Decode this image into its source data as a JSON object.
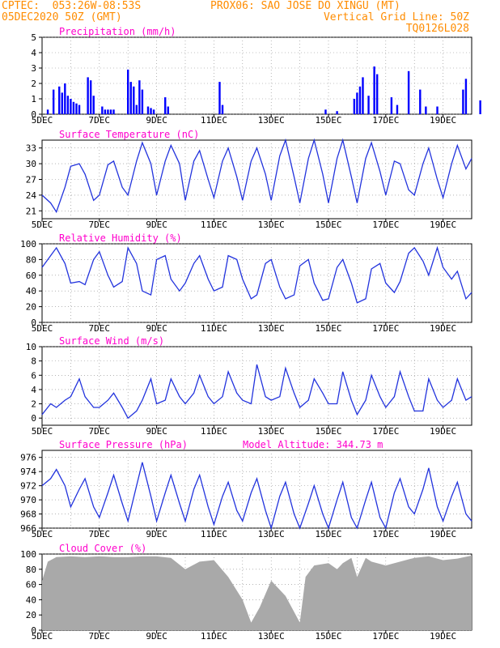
{
  "header": {
    "line1_left": "CPTEC:  053:26W-08:53S",
    "line1_right": "PROX06: SAO JOSE DO XINGU (MT)",
    "line2_left": "05DEC2020 50Z (GMT)",
    "line2_right": "Vertical Grid Line: 50Z",
    "line3_right": "TQ0126L028"
  },
  "x_tick_labels": [
    "5DEC",
    "7DEC",
    "9DEC",
    "11DEC",
    "13DEC",
    "15DEC",
    "17DEC",
    "19DEC"
  ],
  "colors": {
    "header": "#ff8c00",
    "title": "#ff00cc",
    "series": "#2233dd",
    "bar": "#0000ff",
    "cloud": "#a9a9a9",
    "grid": "#888888"
  },
  "chart_data": [
    {
      "type": "bar",
      "title": "Precipitation (mm/h)",
      "ylim": [
        0,
        5
      ],
      "yticks": [
        "0",
        "1",
        "2",
        "3",
        "4",
        "5"
      ],
      "x": [
        0.2,
        0.4,
        0.6,
        0.7,
        0.8,
        0.9,
        1.0,
        1.1,
        1.2,
        1.3,
        1.6,
        1.7,
        1.8,
        2.1,
        2.2,
        2.3,
        2.4,
        2.5,
        3.0,
        3.1,
        3.2,
        3.3,
        3.4,
        3.5,
        3.7,
        3.8,
        3.9,
        4.3,
        4.4,
        6.2,
        6.3,
        9.9,
        10.3,
        10.9,
        11.0,
        11.1,
        11.2,
        11.4,
        11.6,
        11.7,
        12.2,
        12.4,
        12.8,
        13.2,
        13.4,
        13.8,
        14.7,
        14.8,
        15.3
      ],
      "values": [
        0.3,
        1.6,
        1.8,
        1.4,
        2.0,
        1.2,
        1.0,
        0.8,
        0.7,
        0.6,
        2.4,
        2.2,
        1.2,
        0.5,
        0.3,
        0.3,
        0.3,
        0.3,
        2.9,
        2.1,
        1.8,
        0.6,
        2.2,
        1.6,
        0.5,
        0.4,
        0.3,
        1.1,
        0.5,
        2.1,
        0.6,
        0.3,
        0.2,
        1.0,
        1.4,
        1.8,
        2.4,
        1.2,
        3.1,
        2.6,
        1.1,
        0.6,
        2.8,
        1.6,
        0.5,
        0.5,
        1.6,
        2.3,
        0.9
      ]
    },
    {
      "type": "line",
      "title": "Surface Temperature (nC)",
      "ylim": [
        19.5,
        34.5
      ],
      "yticks": [
        "21",
        "24",
        "27",
        "30",
        "33"
      ],
      "x": [
        0,
        0.3,
        0.5,
        0.8,
        1.0,
        1.3,
        1.5,
        1.8,
        2.0,
        2.3,
        2.5,
        2.8,
        3.0,
        3.3,
        3.5,
        3.8,
        4.0,
        4.3,
        4.5,
        4.8,
        5.0,
        5.3,
        5.5,
        5.8,
        6.0,
        6.3,
        6.5,
        6.8,
        7.0,
        7.3,
        7.5,
        7.8,
        8.0,
        8.3,
        8.5,
        8.8,
        9.0,
        9.3,
        9.5,
        9.8,
        10.0,
        10.3,
        10.5,
        10.8,
        11.0,
        11.3,
        11.5,
        11.8,
        12.0,
        12.3,
        12.5,
        12.8,
        13.0,
        13.3,
        13.5,
        13.8,
        14.0,
        14.3,
        14.5,
        14.8,
        15.0
      ],
      "values": [
        24.0,
        22.5,
        20.8,
        25.5,
        29.5,
        30.0,
        28.0,
        23.0,
        24.0,
        29.8,
        30.5,
        25.5,
        24.0,
        30.5,
        34.0,
        30.0,
        24.0,
        30.5,
        33.5,
        30.0,
        23.0,
        30.5,
        32.5,
        27.0,
        23.5,
        30.5,
        33.0,
        27.5,
        23.0,
        30.5,
        33.0,
        28.0,
        23.0,
        31.5,
        34.5,
        27.5,
        22.5,
        31.0,
        34.5,
        28.0,
        22.5,
        31.0,
        34.5,
        27.5,
        22.5,
        31.0,
        34.0,
        28.5,
        24.0,
        30.5,
        30.0,
        25.0,
        24.0,
        30.0,
        33.0,
        27.0,
        23.5,
        30.0,
        33.5,
        29.0,
        31.0
      ]
    },
    {
      "type": "line",
      "title": "Relative Humidity (%)",
      "ylim": [
        0,
        100
      ],
      "yticks": [
        "0",
        "20",
        "40",
        "60",
        "80",
        "100"
      ],
      "x": [
        0,
        0.3,
        0.5,
        0.8,
        1.0,
        1.3,
        1.5,
        1.8,
        2.0,
        2.3,
        2.5,
        2.8,
        3.0,
        3.3,
        3.5,
        3.8,
        4.0,
        4.3,
        4.5,
        4.8,
        5.0,
        5.3,
        5.5,
        5.8,
        6.0,
        6.3,
        6.5,
        6.8,
        7.0,
        7.3,
        7.5,
        7.8,
        8.0,
        8.3,
        8.5,
        8.8,
        9.0,
        9.3,
        9.5,
        9.8,
        10.0,
        10.3,
        10.5,
        10.8,
        11.0,
        11.3,
        11.5,
        11.8,
        12.0,
        12.3,
        12.5,
        12.8,
        13.0,
        13.3,
        13.5,
        13.8,
        14.0,
        14.3,
        14.5,
        14.8,
        15.0
      ],
      "values": [
        70,
        85,
        95,
        75,
        50,
        52,
        48,
        80,
        90,
        60,
        45,
        52,
        95,
        75,
        40,
        35,
        80,
        85,
        55,
        40,
        50,
        75,
        85,
        55,
        40,
        45,
        85,
        80,
        55,
        30,
        35,
        75,
        80,
        45,
        30,
        35,
        72,
        80,
        50,
        28,
        30,
        70,
        80,
        50,
        25,
        30,
        68,
        75,
        50,
        38,
        52,
        88,
        95,
        78,
        60,
        95,
        70,
        55,
        65,
        30,
        38
      ]
    },
    {
      "type": "line",
      "title": "Surface Wind (m/s)",
      "ylim": [
        -1,
        10
      ],
      "yticks": [
        "0",
        "2",
        "4",
        "6",
        "8",
        "10"
      ],
      "x": [
        0,
        0.3,
        0.5,
        0.8,
        1.0,
        1.3,
        1.5,
        1.8,
        2.0,
        2.3,
        2.5,
        2.8,
        3.0,
        3.3,
        3.5,
        3.8,
        4.0,
        4.3,
        4.5,
        4.8,
        5.0,
        5.3,
        5.5,
        5.8,
        6.0,
        6.3,
        6.5,
        6.8,
        7.0,
        7.3,
        7.5,
        7.8,
        8.0,
        8.3,
        8.5,
        8.8,
        9.0,
        9.3,
        9.5,
        9.8,
        10.0,
        10.3,
        10.5,
        10.8,
        11.0,
        11.3,
        11.5,
        11.8,
        12.0,
        12.3,
        12.5,
        12.8,
        13.0,
        13.3,
        13.5,
        13.8,
        14.0,
        14.3,
        14.5,
        14.8,
        15.0
      ],
      "values": [
        0.5,
        2.0,
        1.5,
        2.5,
        3.0,
        5.5,
        3.0,
        1.5,
        1.5,
        2.5,
        3.5,
        1.5,
        0.0,
        1.0,
        2.5,
        5.5,
        2.0,
        2.5,
        5.5,
        3.0,
        2.0,
        3.5,
        6.0,
        3.0,
        2.0,
        3.0,
        6.5,
        3.5,
        2.5,
        2.0,
        7.5,
        3.0,
        2.5,
        3.0,
        7.0,
        3.5,
        1.5,
        2.5,
        5.5,
        3.5,
        2.0,
        2.0,
        6.5,
        2.5,
        0.5,
        2.5,
        6.0,
        3.0,
        1.5,
        3.0,
        6.5,
        3.0,
        1.0,
        1.0,
        5.5,
        2.5,
        1.5,
        2.5,
        5.5,
        2.5,
        3.0
      ]
    },
    {
      "type": "line",
      "title": "Surface Pressure (hPa)",
      "annotation": "Model Altitude: 344.73 m",
      "ylim": [
        966,
        977
      ],
      "yticks": [
        "966",
        "968",
        "970",
        "972",
        "974",
        "976"
      ],
      "x": [
        0,
        0.3,
        0.5,
        0.8,
        1.0,
        1.3,
        1.5,
        1.8,
        2.0,
        2.3,
        2.5,
        2.8,
        3.0,
        3.3,
        3.5,
        3.8,
        4.0,
        4.3,
        4.5,
        4.8,
        5.0,
        5.3,
        5.5,
        5.8,
        6.0,
        6.3,
        6.5,
        6.8,
        7.0,
        7.3,
        7.5,
        7.8,
        8.0,
        8.3,
        8.5,
        8.8,
        9.0,
        9.3,
        9.5,
        9.8,
        10.0,
        10.3,
        10.5,
        10.8,
        11.0,
        11.3,
        11.5,
        11.8,
        12.0,
        12.3,
        12.5,
        12.8,
        13.0,
        13.3,
        13.5,
        13.8,
        14.0,
        14.3,
        14.5,
        14.8,
        15.0
      ],
      "values": [
        972.0,
        973.0,
        974.3,
        972.0,
        969.0,
        971.5,
        973.0,
        969.0,
        967.5,
        971.0,
        973.5,
        969.5,
        967.0,
        972.0,
        975.3,
        970.5,
        967.0,
        971.0,
        973.5,
        969.5,
        967.0,
        971.5,
        973.5,
        969.0,
        966.5,
        970.5,
        972.5,
        968.5,
        967.0,
        971.0,
        973.0,
        968.5,
        966.0,
        970.5,
        972.5,
        968.0,
        966.0,
        969.5,
        972.0,
        968.0,
        966.0,
        970.0,
        972.5,
        967.5,
        966.0,
        970.0,
        972.5,
        967.5,
        966.0,
        971.0,
        973.0,
        969.0,
        968.0,
        971.5,
        974.5,
        969.0,
        967.0,
        970.5,
        972.5,
        968.0,
        967.0
      ]
    },
    {
      "type": "area",
      "title": "Cloud Cover (%)",
      "ylim": [
        0,
        100
      ],
      "yticks": [
        "0",
        "20",
        "40",
        "60",
        "80",
        "100"
      ],
      "x": [
        0,
        0.2,
        0.5,
        1.0,
        1.5,
        2.0,
        2.5,
        3.0,
        3.5,
        4.0,
        4.5,
        5.0,
        5.5,
        6.0,
        6.5,
        7.0,
        7.3,
        7.6,
        8.0,
        8.5,
        9.0,
        9.2,
        9.5,
        10.0,
        10.3,
        10.5,
        10.8,
        11.0,
        11.3,
        11.5,
        12.0,
        12.5,
        13.0,
        13.5,
        14.0,
        14.5,
        15.0
      ],
      "values": [
        65,
        90,
        96,
        97,
        96,
        97,
        96,
        96,
        97,
        97,
        95,
        80,
        90,
        92,
        70,
        40,
        10,
        30,
        65,
        45,
        10,
        70,
        85,
        88,
        80,
        88,
        95,
        70,
        95,
        90,
        85,
        90,
        95,
        97,
        92,
        94,
        98
      ]
    }
  ]
}
